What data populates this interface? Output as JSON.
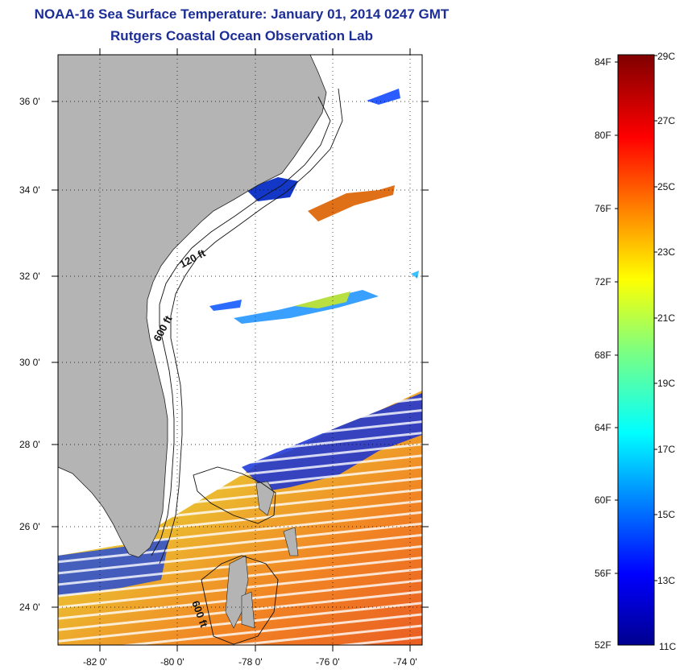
{
  "title": {
    "line1": "NOAA-16 Sea Surface Temperature:  January 01, 2014 0247 GMT",
    "line2": "Rutgers Coastal Ocean Observation Lab"
  },
  "map": {
    "lat_labels": [
      "36 0'",
      "34 0'",
      "32 0'",
      "30 0'",
      "28 0'",
      "26 0'",
      "24 0'"
    ],
    "lon_labels": [
      "-82 0'",
      "-80 0'",
      "-78 0'",
      "-76 0'",
      "-74 0'"
    ],
    "isobaths": [
      "120 ft",
      "600 ft",
      "600 ft"
    ],
    "land_color": "#b4b4b4",
    "ocean_color": "#ffffff"
  },
  "colorbar": {
    "fahrenheit_labels": [
      "84F",
      "80F",
      "76F",
      "72F",
      "68F",
      "64F",
      "60F",
      "56F",
      "52F"
    ],
    "celsius_labels": [
      "29C",
      "27C",
      "25C",
      "23C",
      "21C",
      "19C",
      "17C",
      "15C",
      "13C",
      "11C"
    ],
    "colormap": "jet"
  }
}
